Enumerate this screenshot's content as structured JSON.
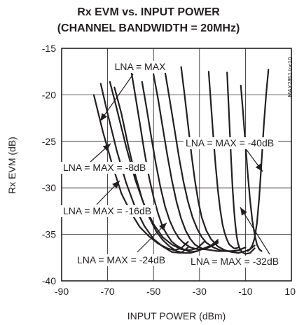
{
  "chart_data": {
    "type": "line",
    "title": "Rx EVM vs. INPUT POWER",
    "subtitle": "(CHANNEL BANDWIDTH = 20MHz)",
    "xlabel": "INPUT POWER (dBm)",
    "ylabel": "Rx EVM (dB)",
    "xlim": [
      -90,
      10
    ],
    "ylim": [
      -40,
      -15
    ],
    "xticks": [
      -90,
      -70,
      -50,
      -30,
      -10,
      10
    ],
    "yticks": [
      -15,
      -20,
      -25,
      -30,
      -35,
      -40
    ],
    "grid": true,
    "legend": "none",
    "code": "MAX2851 toc10",
    "annotations": [
      "LNA = MAX",
      "LNA = MAX = -8dB",
      "LNA = MAX = -16dB",
      "LNA = MAX = -24dB",
      "LNA = MAX = -32dB",
      "LNA = MAX = -40dB"
    ],
    "series": [
      {
        "x": [
          -76,
          -72,
          -68,
          -64,
          -60,
          -56,
          -52,
          -48,
          -44,
          -41,
          -38,
          -35
        ],
        "y": [
          -20,
          -24,
          -27.5,
          -30.6,
          -32.6,
          -34.2,
          -35.2,
          -36,
          -36.5,
          -36.7,
          -36.5,
          -35.8
        ]
      },
      {
        "x": [
          -73,
          -70,
          -66,
          -62,
          -58,
          -54,
          -50,
          -46,
          -42,
          -38,
          -35
        ],
        "y": [
          -18.8,
          -22,
          -26,
          -29.4,
          -32.1,
          -34.1,
          -35.5,
          -36.3,
          -36.9,
          -37,
          -36.4
        ]
      },
      {
        "x": [
          -69,
          -66,
          -62,
          -58,
          -54,
          -50,
          -46,
          -42,
          -38,
          -34,
          -31,
          -28
        ],
        "y": [
          -18.6,
          -21.5,
          -25.5,
          -29.1,
          -31.9,
          -33.9,
          -35.3,
          -36.1,
          -36.6,
          -36.7,
          -36.5,
          -35.8
        ]
      },
      {
        "x": [
          -67,
          -64,
          -61,
          -58,
          -55,
          -52,
          -49,
          -46,
          -43,
          -40,
          -37,
          -34,
          -31,
          -28,
          -25,
          -22
        ],
        "y": [
          -19.2,
          -22,
          -25.5,
          -28.6,
          -31.2,
          -33.1,
          -34.6,
          -35.6,
          -36.3,
          -36.8,
          -37,
          -37,
          -36.8,
          -36.5,
          -36.2,
          -35.6
        ]
      },
      {
        "x": [
          -60,
          -58,
          -56,
          -54,
          -52,
          -50,
          -48,
          -46,
          -44,
          -42,
          -40,
          -37,
          -34,
          -31,
          -28,
          -25,
          -22
        ],
        "y": [
          -17,
          -20,
          -23,
          -26.1,
          -28.8,
          -31,
          -32.8,
          -34.2,
          -35.1,
          -35.8,
          -36.2,
          -36.6,
          -36.9,
          -36.8,
          -36.5,
          -36.2,
          -35.8
        ]
      },
      {
        "x": [
          -55,
          -53,
          -51,
          -49,
          -47,
          -45,
          -43,
          -41,
          -39,
          -37,
          -34,
          -31,
          -28,
          -25,
          -22
        ],
        "y": [
          -18.6,
          -21.5,
          -24.5,
          -27.4,
          -29.9,
          -32,
          -33.5,
          -34.6,
          -35.4,
          -35.9,
          -36.4,
          -36.6,
          -36.6,
          -36.3,
          -35.9
        ]
      },
      {
        "x": [
          -50,
          -48,
          -46,
          -44,
          -42,
          -40,
          -38,
          -36,
          -34,
          -32,
          -30,
          -28,
          -25,
          -22,
          -19,
          -16,
          -13,
          -10
        ],
        "y": [
          -17.8,
          -20.5,
          -23.5,
          -26.5,
          -29.2,
          -31.5,
          -33.3,
          -34.6,
          -35.5,
          -36.1,
          -36.4,
          -36.6,
          -36.7,
          -36.8,
          -36.8,
          -36.8,
          -36.7,
          -36.4
        ]
      },
      {
        "x": [
          -45,
          -43,
          -41,
          -39,
          -37,
          -35,
          -33,
          -31,
          -29,
          -27,
          -24,
          -21,
          -18,
          -15,
          -12
        ],
        "y": [
          -17.5,
          -20.5,
          -23.5,
          -26.6,
          -29.3,
          -31.5,
          -33.2,
          -34.4,
          -35.3,
          -35.9,
          -36.4,
          -36.7,
          -36.8,
          -36.8,
          -36.7
        ]
      },
      {
        "x": [
          -38,
          -36.5,
          -35,
          -33.5,
          -32,
          -30.5,
          -29,
          -27,
          -25,
          -22,
          -19,
          -16,
          -13,
          -10,
          -8,
          -6
        ],
        "y": [
          -17,
          -20,
          -23.2,
          -26.4,
          -29.2,
          -31.5,
          -33.2,
          -34.6,
          -35.5,
          -36.3,
          -36.7,
          -36.9,
          -37,
          -36.8,
          -36.6,
          -36.2
        ]
      },
      {
        "x": [
          -26,
          -25,
          -24,
          -23,
          -22,
          -21,
          -20,
          -19,
          -18,
          -17,
          -16,
          -15,
          -14,
          -13
        ],
        "y": [
          -17.5,
          -21,
          -24.5,
          -27.6,
          -30.2,
          -32.3,
          -33.9,
          -34.9,
          -35.6,
          -36.1,
          -36.3,
          -36.5,
          -36.5,
          -36.4
        ]
      },
      {
        "x": [
          -18,
          -17.4,
          -16.8,
          -16.2,
          -15.6,
          -15,
          -14.4,
          -13.8,
          -13.2,
          -12.5,
          -11.5,
          -10,
          -8,
          -6
        ],
        "y": [
          -17.6,
          -20.7,
          -24,
          -27.2,
          -30,
          -32.3,
          -34,
          -35.2,
          -36,
          -36.5,
          -36.9,
          -37.1,
          -37,
          -36.5
        ]
      },
      {
        "x": [
          -12,
          -11,
          -10,
          -9,
          -8,
          -7,
          -6,
          -5,
          -4,
          -3
        ],
        "y": [
          -19,
          -22,
          -25.3,
          -28.5,
          -31.3,
          -33.5,
          -35,
          -36.1,
          -36.6,
          -36.8
        ]
      },
      {
        "x": [
          -9,
          -8,
          -7,
          -6,
          -5,
          -4,
          -3,
          -2,
          -1,
          0
        ],
        "y": [
          -36.8,
          -36.6,
          -36.2,
          -35.4,
          -33.8,
          -31,
          -27.2,
          -23.3,
          -20,
          -17.3
        ]
      }
    ]
  }
}
